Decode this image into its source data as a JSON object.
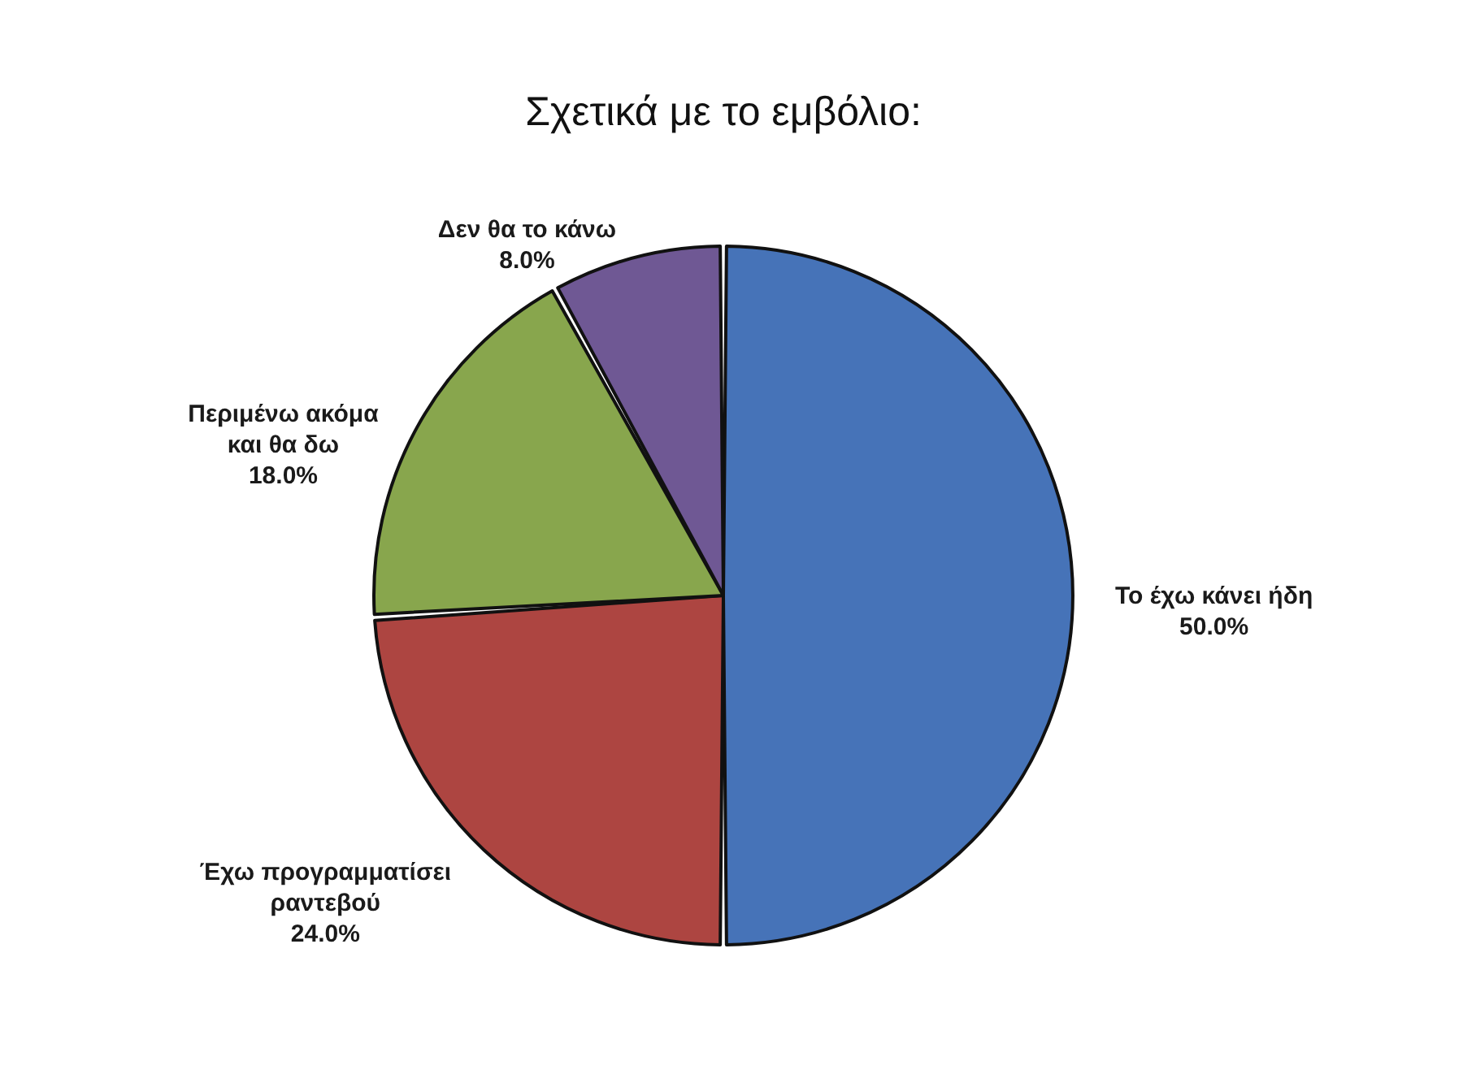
{
  "chart_data": {
    "type": "pie",
    "title": "Σχετικά με το εμβόλιο:",
    "categories": [
      "Το έχω κάνει ήδη",
      "Έχω προγραμματίσει ραντεβού",
      "Περιμένω ακόμα και θα δω",
      "Δεν θα το κάνω"
    ],
    "values": [
      50,
      24,
      18,
      8
    ],
    "value_labels": [
      "50.0%",
      "24.0%",
      "18.0%",
      "8.0%"
    ],
    "colors": [
      "#4673b8",
      "#ad4541",
      "#88a64d",
      "#6f5894"
    ],
    "legend": false
  }
}
